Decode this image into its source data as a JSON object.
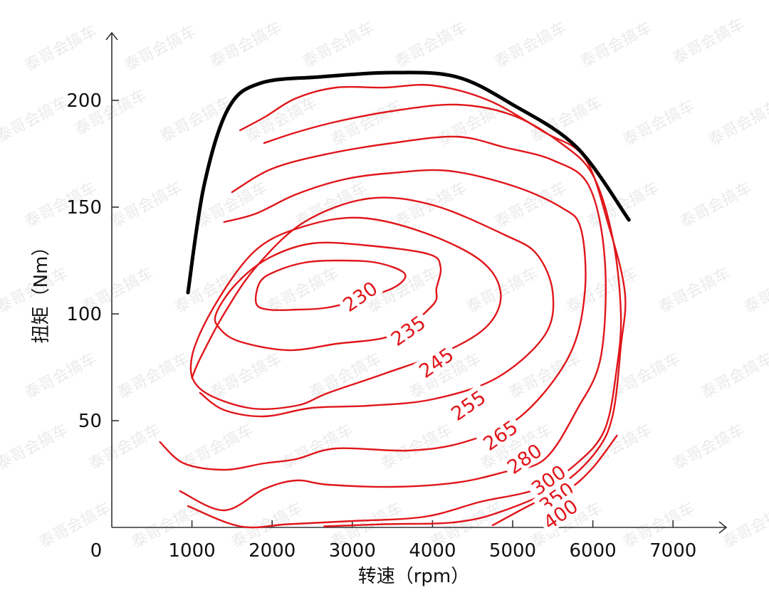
{
  "chart_data": {
    "type": "contour",
    "xlabel": "转速（rpm）",
    "ylabel": "扭矩（Nm）",
    "xlim": [
      0,
      7600
    ],
    "ylim": [
      0,
      235
    ],
    "x_ticks": [
      1000,
      2000,
      3000,
      4000,
      5000,
      6000,
      7000
    ],
    "y_ticks": [
      50,
      100,
      150,
      200
    ],
    "origin_label": "0",
    "watermark": "泰哥会搞车",
    "colors": {
      "contour": "#e0161b",
      "max_torque": "#000000",
      "axis": "#333333"
    },
    "max_torque_curve": [
      [
        950,
        110
      ],
      [
        1150,
        160
      ],
      [
        1450,
        196
      ],
      [
        1850,
        208
      ],
      [
        2600,
        211
      ],
      [
        3500,
        213
      ],
      [
        4300,
        211
      ],
      [
        5000,
        198
      ],
      [
        5800,
        178
      ],
      [
        6450,
        144
      ]
    ],
    "contours": [
      {
        "label": "230",
        "label_pos": [
          3100,
          108
        ],
        "closed": true,
        "points": [
          [
            1800,
            105
          ],
          [
            1850,
            115
          ],
          [
            2050,
            120
          ],
          [
            2400,
            124
          ],
          [
            2800,
            125
          ],
          [
            3300,
            124
          ],
          [
            3650,
            119
          ],
          [
            3550,
            113
          ],
          [
            3200,
            108
          ],
          [
            2700,
            103
          ],
          [
            2300,
            102
          ],
          [
            1950,
            102
          ]
        ]
      },
      {
        "label": "235",
        "label_pos": [
          3700,
          92
        ],
        "closed": true,
        "points": [
          [
            1300,
            100
          ],
          [
            1550,
            114
          ],
          [
            1950,
            126
          ],
          [
            2500,
            133
          ],
          [
            3200,
            132
          ],
          [
            3950,
            128
          ],
          [
            4100,
            122
          ],
          [
            4050,
            112
          ],
          [
            4000,
            104
          ],
          [
            3500,
            90
          ],
          [
            2800,
            86
          ],
          [
            2200,
            83
          ],
          [
            1600,
            87
          ],
          [
            1350,
            93
          ]
        ]
      },
      {
        "label": "245",
        "label_pos": [
          4050,
          77
        ],
        "closed": true,
        "points": [
          [
            1000,
            80
          ],
          [
            1300,
            105
          ],
          [
            1800,
            130
          ],
          [
            2400,
            141
          ],
          [
            3100,
            145
          ],
          [
            3900,
            138
          ],
          [
            4600,
            125
          ],
          [
            4850,
            110
          ],
          [
            4700,
            95
          ],
          [
            4200,
            83
          ],
          [
            3400,
            72
          ],
          [
            2700,
            63
          ],
          [
            2300,
            57
          ],
          [
            1700,
            56
          ],
          [
            1100,
            65
          ]
        ]
      },
      {
        "label": "255",
        "label_pos": [
          4450,
          57
        ],
        "closed": false,
        "points": [
          [
            1000,
            70
          ],
          [
            1100,
            79
          ],
          [
            1400,
            100
          ],
          [
            1800,
            122
          ],
          [
            2400,
            143
          ],
          [
            3200,
            154
          ],
          [
            4000,
            151
          ],
          [
            4900,
            137
          ],
          [
            5300,
            128
          ],
          [
            5500,
            110
          ],
          [
            5400,
            90
          ],
          [
            4800,
            70
          ],
          [
            4000,
            60
          ],
          [
            3200,
            57
          ],
          [
            2500,
            56
          ],
          [
            1900,
            52
          ],
          [
            1400,
            55
          ],
          [
            1100,
            63
          ]
        ]
      },
      {
        "label": "265",
        "label_pos": [
          4850,
          43
        ],
        "closed": false,
        "points": [
          [
            600,
            40
          ],
          [
            900,
            30
          ],
          [
            1400,
            27
          ],
          [
            1900,
            30
          ],
          [
            2300,
            32
          ],
          [
            2800,
            37
          ],
          [
            3700,
            36
          ],
          [
            4400,
            40
          ],
          [
            5100,
            52
          ],
          [
            5700,
            80
          ],
          [
            5900,
            110
          ],
          [
            5850,
            140
          ],
          [
            5600,
            150
          ],
          [
            5000,
            160
          ],
          [
            4200,
            167
          ],
          [
            3500,
            166
          ],
          [
            2900,
            163
          ],
          [
            2300,
            156
          ],
          [
            1800,
            147
          ],
          [
            1400,
            143
          ]
        ]
      },
      {
        "label": "280",
        "label_pos": [
          5150,
          32
        ],
        "closed": false,
        "points": [
          [
            850,
            17
          ],
          [
            1400,
            8
          ],
          [
            1900,
            18
          ],
          [
            2300,
            22
          ],
          [
            2700,
            20
          ],
          [
            3500,
            19
          ],
          [
            4300,
            21
          ],
          [
            4900,
            26
          ],
          [
            5400,
            32
          ],
          [
            5800,
            55
          ],
          [
            6100,
            80
          ],
          [
            6150,
            125
          ],
          [
            5950,
            160
          ],
          [
            5500,
            172
          ],
          [
            4900,
            178
          ],
          [
            4300,
            183
          ],
          [
            3500,
            180
          ],
          [
            2700,
            175
          ],
          [
            2000,
            168
          ],
          [
            1500,
            157
          ]
        ]
      },
      {
        "label": "300",
        "label_pos": [
          5450,
          22
        ],
        "closed": false,
        "points": [
          [
            950,
            10
          ],
          [
            1600,
            0.5
          ],
          [
            2200,
            1.5
          ],
          [
            3000,
            3
          ],
          [
            3900,
            5
          ],
          [
            4600,
            12
          ],
          [
            5300,
            18
          ],
          [
            5800,
            30
          ],
          [
            6150,
            46
          ],
          [
            6300,
            75
          ],
          [
            6350,
            100
          ],
          [
            6250,
            135
          ],
          [
            6000,
            165
          ],
          [
            5600,
            180
          ],
          [
            5000,
            193
          ],
          [
            4300,
            198
          ],
          [
            3500,
            195
          ],
          [
            2800,
            190
          ],
          [
            2300,
            185
          ],
          [
            1900,
            180
          ]
        ]
      },
      {
        "label": "350",
        "label_pos": [
          5550,
          14
        ],
        "closed": false,
        "points": [
          [
            2650,
            0.5
          ],
          [
            3400,
            1.5
          ],
          [
            4300,
            2.5
          ],
          [
            4900,
            8
          ],
          [
            5600,
            20
          ],
          [
            6050,
            36
          ],
          [
            6250,
            53
          ],
          [
            6350,
            85
          ],
          [
            6400,
            110
          ],
          [
            6200,
            141
          ],
          [
            5900,
            173
          ],
          [
            5400,
            185
          ],
          [
            4700,
            200
          ],
          [
            4000,
            207
          ],
          [
            3400,
            206
          ],
          [
            2800,
            206
          ],
          [
            2300,
            201
          ],
          [
            1900,
            192
          ],
          [
            1600,
            186
          ]
        ]
      },
      {
        "label": "400",
        "label_pos": [
          5600,
          6
        ],
        "closed": false,
        "points": [
          [
            4750,
            1
          ],
          [
            5300,
            12
          ],
          [
            5700,
            18
          ],
          [
            6000,
            28
          ],
          [
            6300,
            43
          ]
        ]
      }
    ]
  }
}
